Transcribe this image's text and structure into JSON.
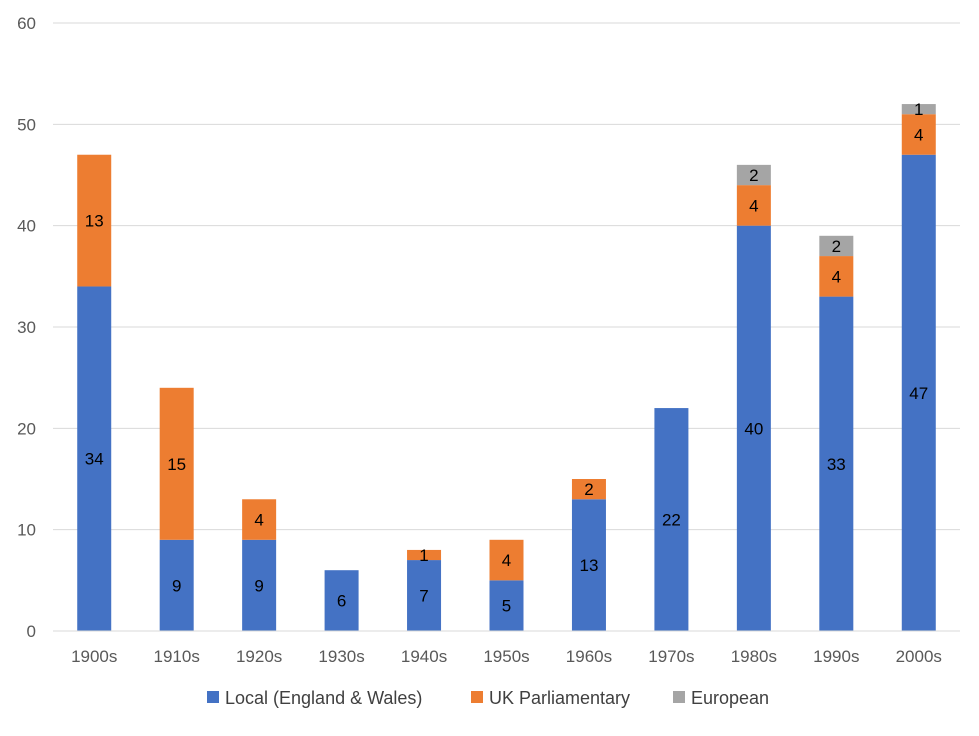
{
  "chart_data": {
    "type": "bar",
    "stacked": true,
    "title": "",
    "xlabel": "",
    "ylabel": "",
    "categories": [
      "1900s",
      "1910s",
      "1920s",
      "1930s",
      "1940s",
      "1950s",
      "1960s",
      "1970s",
      "1980s",
      "1990s",
      "2000s"
    ],
    "ylim": [
      0,
      60
    ],
    "yticks": [
      0,
      10,
      20,
      30,
      40,
      50,
      60
    ],
    "grid": true,
    "legend_position": "bottom",
    "series": [
      {
        "name": "Local (England & Wales)",
        "color": "#4472C4",
        "values": [
          34,
          9,
          9,
          6,
          7,
          5,
          13,
          22,
          40,
          33,
          47
        ],
        "labels": [
          "34",
          "9",
          "9",
          "6",
          "7",
          "5",
          "13",
          "22",
          "40",
          "33",
          "47"
        ]
      },
      {
        "name": "UK Parliamentary",
        "color": "#ED7D31",
        "values": [
          13,
          15,
          4,
          0,
          1,
          4,
          2,
          0,
          4,
          4,
          4
        ],
        "labels": [
          "13",
          "15",
          "4",
          "",
          "1",
          "4",
          "2",
          "",
          "4",
          "4",
          "4"
        ]
      },
      {
        "name": "European",
        "color": "#A5A5A5",
        "values": [
          0,
          0,
          0,
          0,
          0,
          0,
          0,
          0,
          2,
          2,
          1
        ],
        "labels": [
          "",
          "",
          "",
          "",
          "",
          "",
          "",
          "",
          "2",
          "2",
          "1"
        ]
      }
    ]
  }
}
